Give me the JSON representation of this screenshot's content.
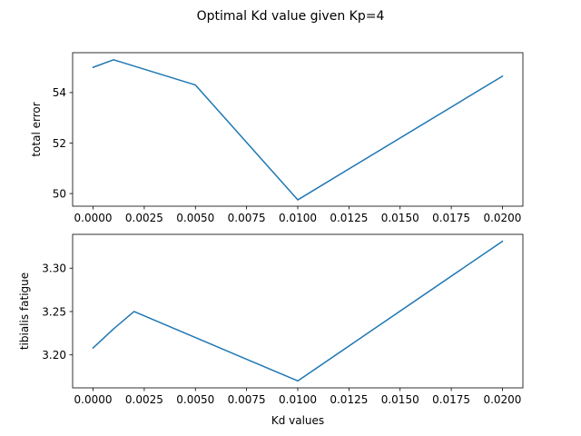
{
  "figure": {
    "suptitle": "Optimal Kd value given Kp=4"
  },
  "chart_data": [
    {
      "type": "line",
      "title": "",
      "xlabel": "",
      "ylabel": "total error",
      "x": [
        0.0,
        0.001,
        0.005,
        0.01,
        0.02
      ],
      "series": [
        {
          "values": [
            55.0,
            55.3,
            54.3,
            49.75,
            54.65
          ],
          "color": "#1f77b4"
        }
      ],
      "xlim": [
        -0.001,
        0.021
      ],
      "ylim": [
        49.5,
        55.58
      ],
      "xticks": [
        0.0,
        0.0025,
        0.005,
        0.0075,
        0.01,
        0.0125,
        0.015,
        0.0175,
        0.02
      ],
      "xtick_labels": [
        "0.0000",
        "0.0025",
        "0.0050",
        "0.0075",
        "0.0100",
        "0.0125",
        "0.0150",
        "0.0175",
        "0.0200"
      ],
      "yticks": [
        50,
        52,
        54
      ],
      "ytick_labels": [
        "50",
        "52",
        "54"
      ],
      "grid": false
    },
    {
      "type": "line",
      "title": "",
      "xlabel": "Kd values",
      "ylabel": "tibialis fatigue",
      "x": [
        0.0,
        0.001,
        0.002,
        0.01,
        0.02
      ],
      "series": [
        {
          "values": [
            3.208,
            3.23,
            3.25,
            3.17,
            3.331
          ],
          "color": "#1f77b4"
        }
      ],
      "xlim": [
        -0.001,
        0.021
      ],
      "ylim": [
        3.162,
        3.339
      ],
      "xticks": [
        0.0,
        0.0025,
        0.005,
        0.0075,
        0.01,
        0.0125,
        0.015,
        0.0175,
        0.02
      ],
      "xtick_labels": [
        "0.0000",
        "0.0025",
        "0.0050",
        "0.0075",
        "0.0100",
        "0.0125",
        "0.0150",
        "0.0175",
        "0.0200"
      ],
      "yticks": [
        3.2,
        3.25,
        3.3
      ],
      "ytick_labels": [
        "3.20",
        "3.25",
        "3.30"
      ],
      "grid": false
    }
  ]
}
